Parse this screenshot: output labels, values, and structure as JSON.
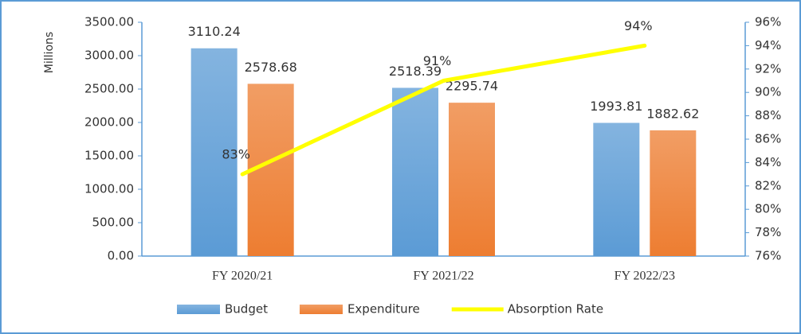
{
  "chart_data": {
    "type": "bar",
    "y_axis_label": "Millions",
    "categories": [
      "FY 2020/21",
      "FY 2021/22",
      "FY 2022/23"
    ],
    "series": [
      {
        "name": "Budget",
        "color": "#5b9bd5",
        "values": [
          3110.24,
          2518.39,
          1993.81
        ]
      },
      {
        "name": "Expenditure",
        "color": "#ed7d31",
        "values": [
          2578.68,
          2295.74,
          1882.62
        ]
      },
      {
        "name": "Absorption Rate",
        "color": "#ffff00",
        "type": "line",
        "axis": "y2",
        "values": [
          83,
          91,
          94
        ],
        "value_labels": [
          "83%",
          "91%",
          "94%"
        ]
      }
    ],
    "ylim": [
      0,
      3500
    ],
    "yticks": [
      {
        "value": 0,
        "label": "0.00"
      },
      {
        "value": 500,
        "label": "500.00"
      },
      {
        "value": 1000,
        "label": "1000.00"
      },
      {
        "value": 1500,
        "label": "1500.00"
      },
      {
        "value": 2000,
        "label": "2000.00"
      },
      {
        "value": 2500,
        "label": "2500.00"
      },
      {
        "value": 3000,
        "label": "3000.00"
      },
      {
        "value": 3500,
        "label": "3500.00"
      }
    ],
    "y2lim": [
      76,
      96
    ],
    "y2ticks": [
      {
        "value": 76,
        "label": "76%"
      },
      {
        "value": 78,
        "label": "78%"
      },
      {
        "value": 80,
        "label": "80%"
      },
      {
        "value": 82,
        "label": "82%"
      },
      {
        "value": 84,
        "label": "84%"
      },
      {
        "value": 86,
        "label": "86%"
      },
      {
        "value": 88,
        "label": "88%"
      },
      {
        "value": 90,
        "label": "90%"
      },
      {
        "value": 92,
        "label": "92%"
      },
      {
        "value": 94,
        "label": "94%"
      },
      {
        "value": 96,
        "label": "96%"
      }
    ],
    "legend": "bottom"
  }
}
